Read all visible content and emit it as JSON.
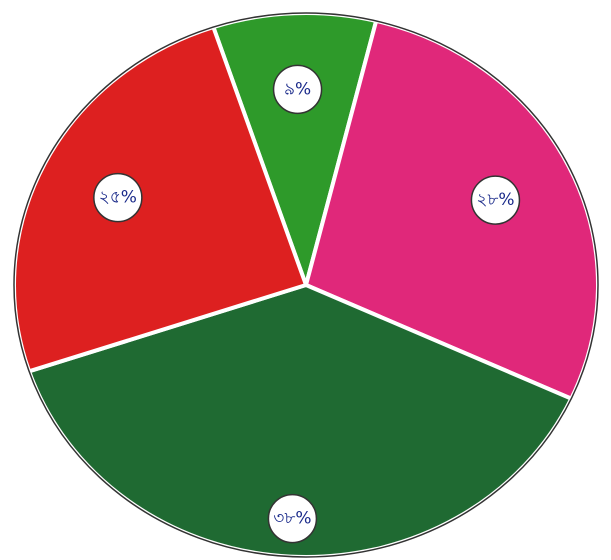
{
  "chart_data": {
    "type": "pie",
    "values": [
      9,
      28,
      38,
      25
    ],
    "value_labels": [
      "৯%",
      "২৮%",
      "৩৮%",
      "২৫%"
    ],
    "colors": [
      "#2e9a2a",
      "#e0287a",
      "#1f6a32",
      "#dd2020"
    ]
  }
}
